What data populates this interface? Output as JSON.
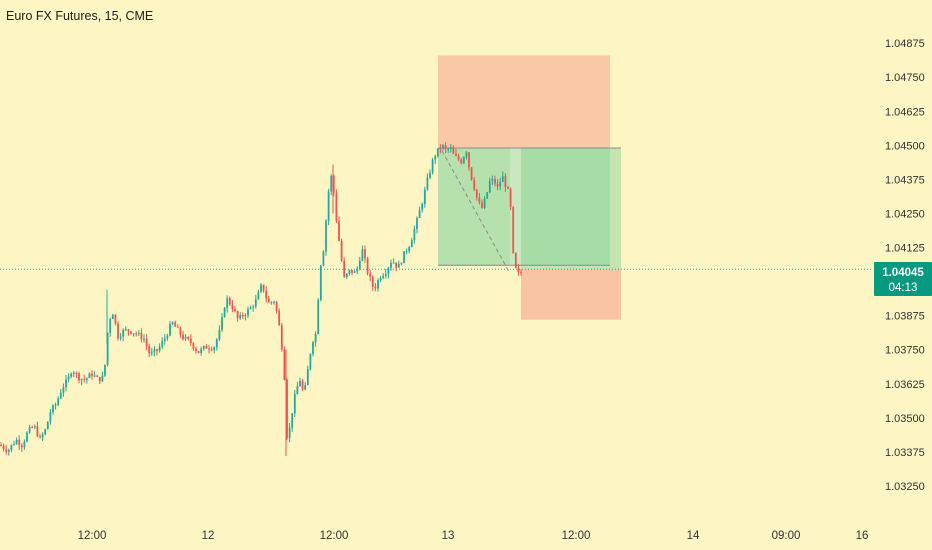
{
  "header": {
    "title": "Euro FX Futures, 15, CME"
  },
  "price_label": {
    "price": "1.04045",
    "countdown": "04:13",
    "color": "#089981"
  },
  "colors": {
    "background": "#fdf6c4",
    "bull": "#26a69a",
    "bear": "#ef5350",
    "stop_zone": "#f7b89c",
    "target_zone": "#9fd9a4"
  },
  "chart_data": {
    "type": "candlestick",
    "symbol": "Euro FX Futures",
    "interval": "15",
    "exchange": "CME",
    "last_price": 1.04045,
    "ylim": [
      1.0318,
      1.0496
    ],
    "y_ticks": [
      "1.04875",
      "1.04750",
      "1.04625",
      "1.04500",
      "1.04375",
      "1.04250",
      "1.04125",
      "1.03875",
      "1.03750",
      "1.03625",
      "1.03500",
      "1.03375",
      "1.03250"
    ],
    "x_ticks": [
      "12:00",
      "12",
      "12:00",
      "13",
      "12:00",
      "14",
      "09:00",
      "16"
    ],
    "price_path": [
      [
        0,
        1.034
      ],
      [
        8,
        1.0338
      ],
      [
        16,
        1.0342
      ],
      [
        22,
        1.034
      ],
      [
        28,
        1.0345
      ],
      [
        34,
        1.0347
      ],
      [
        40,
        1.0342
      ],
      [
        46,
        1.0346
      ],
      [
        50,
        1.0352
      ],
      [
        56,
        1.0355
      ],
      [
        62,
        1.0361
      ],
      [
        68,
        1.0364
      ],
      [
        72,
        1.0368
      ],
      [
        78,
        1.0365
      ],
      [
        84,
        1.0364
      ],
      [
        92,
        1.0366
      ],
      [
        98,
        1.0364
      ],
      [
        104,
        1.0365
      ],
      [
        108,
        1.0383
      ],
      [
        112,
        1.039
      ],
      [
        118,
        1.038
      ],
      [
        124,
        1.0382
      ],
      [
        130,
        1.0382
      ],
      [
        136,
        1.0381
      ],
      [
        144,
        1.0379
      ],
      [
        150,
        1.0373
      ],
      [
        158,
        1.0375
      ],
      [
        166,
        1.038
      ],
      [
        172,
        1.0385
      ],
      [
        178,
        1.0382
      ],
      [
        184,
        1.0379
      ],
      [
        190,
        1.0378
      ],
      [
        198,
        1.0374
      ],
      [
        206,
        1.0376
      ],
      [
        214,
        1.0376
      ],
      [
        220,
        1.0382
      ],
      [
        226,
        1.0394
      ],
      [
        232,
        1.0391
      ],
      [
        238,
        1.0386
      ],
      [
        244,
        1.0388
      ],
      [
        250,
        1.039
      ],
      [
        256,
        1.0393
      ],
      [
        262,
        1.0399
      ],
      [
        268,
        1.0392
      ],
      [
        274,
        1.0393
      ],
      [
        278,
        1.0387
      ],
      [
        284,
        1.037
      ],
      [
        286,
        1.0345
      ],
      [
        288,
        1.0342
      ],
      [
        292,
        1.0352
      ],
      [
        296,
        1.036
      ],
      [
        300,
        1.0364
      ],
      [
        304,
        1.0358
      ],
      [
        308,
        1.0368
      ],
      [
        312,
        1.0378
      ],
      [
        316,
        1.0381
      ],
      [
        320,
        1.0405
      ],
      [
        324,
        1.0413
      ],
      [
        328,
        1.0432
      ],
      [
        332,
        1.044
      ],
      [
        336,
        1.0424
      ],
      [
        340,
        1.0412
      ],
      [
        344,
        1.0401
      ],
      [
        350,
        1.0404
      ],
      [
        356,
        1.0403
      ],
      [
        362,
        1.0412
      ],
      [
        368,
        1.0403
      ],
      [
        374,
        1.0397
      ],
      [
        380,
        1.0402
      ],
      [
        386,
        1.0404
      ],
      [
        392,
        1.0408
      ],
      [
        398,
        1.0405
      ],
      [
        404,
        1.041
      ],
      [
        410,
        1.0414
      ],
      [
        416,
        1.0421
      ],
      [
        422,
        1.0429
      ],
      [
        428,
        1.0438
      ],
      [
        434,
        1.0446
      ],
      [
        438,
        1.0448
      ],
      [
        442,
        1.045
      ],
      [
        446,
        1.0448
      ],
      [
        450,
        1.0449
      ],
      [
        454,
        1.0446
      ],
      [
        458,
        1.0445
      ],
      [
        462,
        1.0444
      ],
      [
        466,
        1.0449
      ],
      [
        470,
        1.044
      ],
      [
        474,
        1.0435
      ],
      [
        478,
        1.0429
      ],
      [
        482,
        1.0427
      ],
      [
        486,
        1.0431
      ],
      [
        490,
        1.0437
      ],
      [
        494,
        1.0437
      ],
      [
        498,
        1.0434
      ],
      [
        502,
        1.0439
      ],
      [
        506,
        1.0435
      ],
      [
        510,
        1.0431
      ],
      [
        513,
        1.041
      ],
      [
        516,
        1.0404
      ],
      [
        520,
        1.0402
      ],
      [
        522,
        1.0405
      ]
    ],
    "position_tool": {
      "side": "short",
      "entry": 1.0449,
      "stop": 1.0483,
      "target": 1.0406
    }
  }
}
